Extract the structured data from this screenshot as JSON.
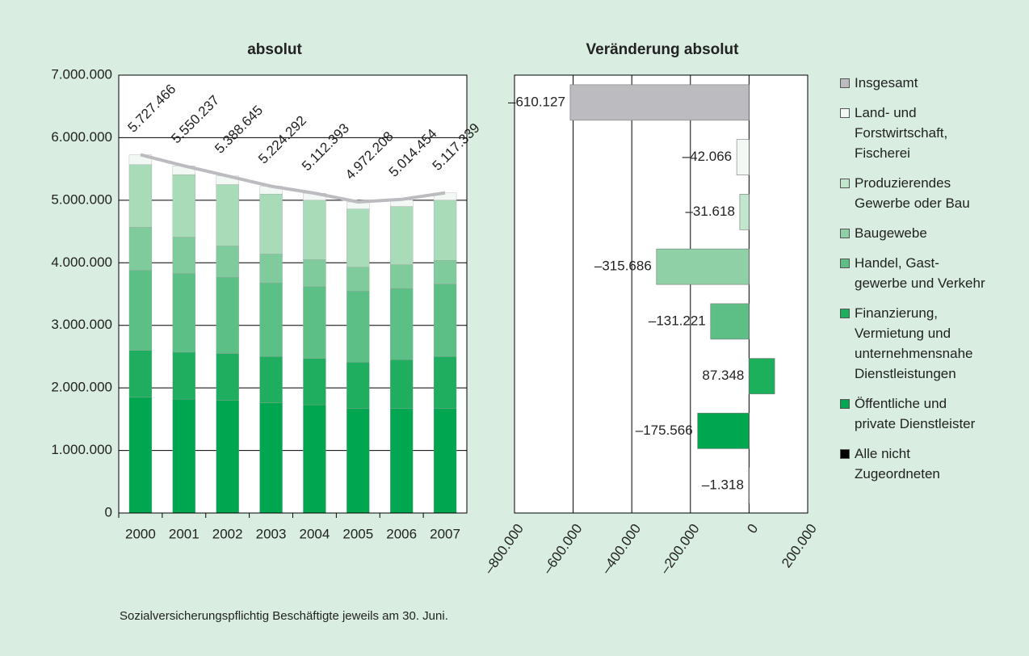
{
  "chart_data": [
    {
      "type": "bar",
      "stacked": true,
      "title": "absolut",
      "categories": [
        "2000",
        "2001",
        "2002",
        "2003",
        "2004",
        "2005",
        "2006",
        "2007"
      ],
      "series": [
        {
          "color": "#00a650",
          "values": [
            1850000,
            1820000,
            1800000,
            1760000,
            1730000,
            1670000,
            1670000,
            1670000
          ]
        },
        {
          "color": "#1fae5f",
          "values": [
            750000,
            750000,
            750000,
            740000,
            740000,
            740000,
            780000,
            830000
          ]
        },
        {
          "color": "#5cbf86",
          "values": [
            1280000,
            1260000,
            1220000,
            1180000,
            1150000,
            1140000,
            1140000,
            1160000
          ]
        },
        {
          "color": "#80cb9c",
          "values": [
            690000,
            580000,
            500000,
            460000,
            430000,
            380000,
            380000,
            380000
          ]
        },
        {
          "color": "#a8dbb8",
          "values": [
            1000000,
            1000000,
            980000,
            960000,
            950000,
            930000,
            930000,
            960000
          ]
        },
        {
          "color": "#f2f9f4",
          "values": [
            157466,
            140237,
            138645,
            124292,
            112393,
            112208,
            104454,
            117339
          ]
        },
        {
          "type": "line",
          "color": "#bcbcc0",
          "values": [
            5727466,
            5550237,
            5388645,
            5224292,
            5112393,
            4972208,
            5014454,
            5117339
          ],
          "value_labels": [
            "5.727.466",
            "5.550.237",
            "5.388.645",
            "5.224.292",
            "5.112.393",
            "4.972.208",
            "5.014.454",
            "5.117.339"
          ]
        }
      ],
      "ylim": [
        0,
        7000000
      ],
      "yticks": [
        0,
        {
          "value": 1000000,
          "label": "1.000.000"
        },
        {
          "value": 2000000,
          "label": "2.000.000"
        },
        {
          "value": 3000000,
          "label": "3.000.000"
        },
        {
          "value": 4000000,
          "label": "4.000.000"
        },
        {
          "value": 5000000,
          "label": "5.000.000"
        },
        {
          "value": 6000000,
          "label": "6.000.000"
        },
        {
          "value": 7000000,
          "label": "7.000.000"
        }
      ],
      "grid": true
    },
    {
      "type": "bar",
      "horizontal": true,
      "title": "Veränderung absolut",
      "categories": [
        "Insgesamt",
        "Land- und\nForstwirtschaft,\nFischerei",
        "Produzierendes\nGewerbe oder Bau",
        "Baugewebe",
        "Handel, Gast-\ngewerbe und Verkehr",
        "Finanzierung,\nVermietung und\nunternehmensnahe\nDienstleistungen",
        "Öffentliche und\nprivate Dienstleister",
        "Alle nicht\nZugeordneten"
      ],
      "colors": [
        "#bcbcc0",
        "#f2f9f4",
        "#c2e6cd",
        "#8fd0a6",
        "#5ebf86",
        "#1cb05c",
        "#00a650",
        "#000000"
      ],
      "values": [
        -610127,
        -42066,
        -31618,
        -315686,
        -131221,
        87348,
        -175566,
        -1318
      ],
      "value_labels": [
        "–610.127",
        "–42.066",
        "–31.618",
        "–315.686",
        "–131.221",
        "87.348",
        "–175.566",
        "–1.318"
      ],
      "xlim": [
        -800000,
        200000
      ],
      "xticks": [
        {
          "value": -800000,
          "label": "–800.000"
        },
        {
          "value": -600000,
          "label": "–600.000"
        },
        {
          "value": -400000,
          "label": "–400.000"
        },
        {
          "value": -200000,
          "label": "–200.000"
        },
        0,
        {
          "value": 200000,
          "label": "200.000"
        }
      ],
      "grid": true,
      "legend": "right"
    }
  ],
  "note": "Sozialversicherungspflichtig Beschäftigte jeweils am 30. Juni."
}
